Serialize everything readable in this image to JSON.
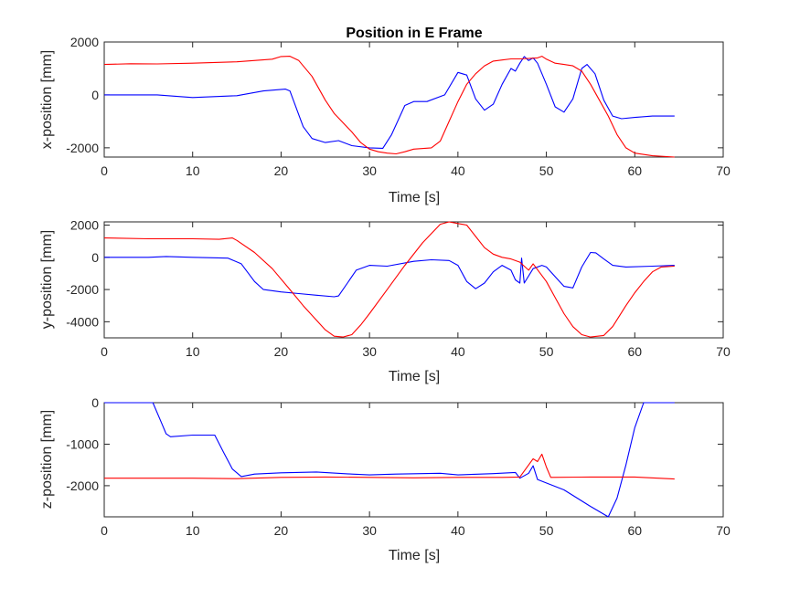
{
  "figure_title": "Position in E Frame",
  "colors": {
    "series_1": "#0000ff",
    "series_2": "#ff0000",
    "axes": "#262626",
    "background": "#ffffff"
  },
  "chart_data": [
    {
      "type": "line",
      "title": "Position in E Frame",
      "xlabel": "Time [s]",
      "ylabel": "x-position [mm]",
      "xlim": [
        0,
        70
      ],
      "ylim": [
        -2350,
        2000
      ],
      "xticks": [
        0,
        10,
        20,
        30,
        40,
        50,
        60,
        70
      ],
      "yticks": [
        -2000,
        0,
        2000
      ],
      "ytick_labels": [
        "-2000",
        "0",
        "2000"
      ],
      "grid": false,
      "legend": "none",
      "series": [
        {
          "color": "#0000ff",
          "points": [
            [
              0,
              0
            ],
            [
              6,
              0
            ],
            [
              10,
              -100
            ],
            [
              15,
              -30
            ],
            [
              18,
              150
            ],
            [
              20.5,
              220
            ],
            [
              21,
              150
            ],
            [
              22.5,
              -1200
            ],
            [
              23.5,
              -1650
            ],
            [
              25,
              -1800
            ],
            [
              26.5,
              -1730
            ],
            [
              28,
              -1920
            ],
            [
              30,
              -2000
            ],
            [
              31.5,
              -2020
            ],
            [
              32.5,
              -1500
            ],
            [
              34,
              -400
            ],
            [
              35,
              -250
            ],
            [
              36.5,
              -250
            ],
            [
              38.5,
              0
            ],
            [
              40,
              850
            ],
            [
              41,
              750
            ],
            [
              42,
              -150
            ],
            [
              43,
              -580
            ],
            [
              44,
              -350
            ],
            [
              45,
              400
            ],
            [
              46,
              1000
            ],
            [
              46.5,
              900
            ],
            [
              47,
              1200
            ],
            [
              47.5,
              1450
            ],
            [
              48,
              1300
            ],
            [
              48.5,
              1400
            ],
            [
              49,
              1200
            ],
            [
              50,
              400
            ],
            [
              51,
              -450
            ],
            [
              52,
              -650
            ],
            [
              53,
              -150
            ],
            [
              54,
              1000
            ],
            [
              54.6,
              1150
            ],
            [
              55.5,
              800
            ],
            [
              56.5,
              -200
            ],
            [
              57.5,
              -800
            ],
            [
              58.5,
              -900
            ],
            [
              60,
              -850
            ],
            [
              62,
              -800
            ],
            [
              64.5,
              -800
            ]
          ]
        },
        {
          "color": "#ff0000",
          "points": [
            [
              0,
              1150
            ],
            [
              3,
              1180
            ],
            [
              6,
              1170
            ],
            [
              10,
              1200
            ],
            [
              15,
              1250
            ],
            [
              19,
              1350
            ],
            [
              20,
              1450
            ],
            [
              21,
              1460
            ],
            [
              22,
              1300
            ],
            [
              23.5,
              700
            ],
            [
              25,
              -200
            ],
            [
              26,
              -700
            ],
            [
              28,
              -1400
            ],
            [
              29,
              -1800
            ],
            [
              30,
              -2050
            ],
            [
              31,
              -2150
            ],
            [
              32,
              -2200
            ],
            [
              33,
              -2230
            ],
            [
              34,
              -2150
            ],
            [
              35,
              -2050
            ],
            [
              37,
              -2000
            ],
            [
              38,
              -1750
            ],
            [
              39,
              -1000
            ],
            [
              40,
              -250
            ],
            [
              41,
              400
            ],
            [
              42,
              800
            ],
            [
              43,
              1100
            ],
            [
              44,
              1280
            ],
            [
              45,
              1320
            ],
            [
              46,
              1360
            ],
            [
              47,
              1360
            ],
            [
              48,
              1380
            ],
            [
              49,
              1400
            ],
            [
              49.5,
              1460
            ],
            [
              50,
              1350
            ],
            [
              51,
              1200
            ],
            [
              52,
              1150
            ],
            [
              53,
              1100
            ],
            [
              54,
              900
            ],
            [
              55,
              400
            ],
            [
              56,
              -200
            ],
            [
              57,
              -800
            ],
            [
              58,
              -1500
            ],
            [
              59,
              -2000
            ],
            [
              60,
              -2200
            ],
            [
              62,
              -2300
            ],
            [
              64.5,
              -2350
            ]
          ]
        }
      ]
    },
    {
      "type": "line",
      "xlabel": "Time [s]",
      "ylabel": "y-position [mm]",
      "xlim": [
        0,
        70
      ],
      "ylim": [
        -5000,
        2200
      ],
      "xticks": [
        0,
        10,
        20,
        30,
        40,
        50,
        60,
        70
      ],
      "yticks": [
        -4000,
        -2000,
        0,
        2000
      ],
      "ytick_labels": [
        "-4000",
        "-2000",
        "0",
        "2000"
      ],
      "grid": false,
      "legend": "none",
      "series": [
        {
          "color": "#0000ff",
          "points": [
            [
              0,
              0
            ],
            [
              5,
              0
            ],
            [
              7,
              50
            ],
            [
              10,
              0
            ],
            [
              14,
              -50
            ],
            [
              15.5,
              -400
            ],
            [
              17,
              -1500
            ],
            [
              18,
              -2000
            ],
            [
              20,
              -2150
            ],
            [
              22,
              -2250
            ],
            [
              24,
              -2350
            ],
            [
              26,
              -2450
            ],
            [
              26.5,
              -2400
            ],
            [
              27.5,
              -1600
            ],
            [
              28.5,
              -800
            ],
            [
              30,
              -500
            ],
            [
              32,
              -550
            ],
            [
              35,
              -250
            ],
            [
              37,
              -150
            ],
            [
              39,
              -200
            ],
            [
              40,
              -500
            ],
            [
              41,
              -1500
            ],
            [
              42,
              -1950
            ],
            [
              43,
              -1600
            ],
            [
              44,
              -900
            ],
            [
              45,
              -500
            ],
            [
              46,
              -800
            ],
            [
              46.5,
              -1400
            ],
            [
              47,
              -1600
            ],
            [
              47.2,
              -50
            ],
            [
              47.5,
              -1600
            ],
            [
              48.5,
              -700
            ],
            [
              49.5,
              -500
            ],
            [
              50,
              -600
            ],
            [
              51,
              -1200
            ],
            [
              52,
              -1800
            ],
            [
              53,
              -1900
            ],
            [
              54,
              -600
            ],
            [
              55,
              300
            ],
            [
              55.6,
              280
            ],
            [
              56.5,
              -100
            ],
            [
              57.5,
              -500
            ],
            [
              59,
              -600
            ],
            [
              62,
              -550
            ],
            [
              64.5,
              -500
            ]
          ]
        },
        {
          "color": "#ff0000",
          "points": [
            [
              0,
              1200
            ],
            [
              5,
              1150
            ],
            [
              10,
              1150
            ],
            [
              13,
              1120
            ],
            [
              14.5,
              1200
            ],
            [
              15,
              1050
            ],
            [
              17,
              300
            ],
            [
              19,
              -700
            ],
            [
              21,
              -2000
            ],
            [
              22.5,
              -3000
            ],
            [
              24,
              -3900
            ],
            [
              25,
              -4500
            ],
            [
              26,
              -4900
            ],
            [
              27,
              -4950
            ],
            [
              28,
              -4800
            ],
            [
              29,
              -4200
            ],
            [
              30,
              -3500
            ],
            [
              32,
              -2000
            ],
            [
              34,
              -500
            ],
            [
              36,
              900
            ],
            [
              38,
              2050
            ],
            [
              39,
              2200
            ],
            [
              40,
              2100
            ],
            [
              41,
              2000
            ],
            [
              42,
              1300
            ],
            [
              43,
              600
            ],
            [
              44,
              200
            ],
            [
              45,
              0
            ],
            [
              46,
              -100
            ],
            [
              47,
              -300
            ],
            [
              48,
              -800
            ],
            [
              48.5,
              -400
            ],
            [
              50,
              -1500
            ],
            [
              51,
              -2500
            ],
            [
              52,
              -3500
            ],
            [
              53,
              -4300
            ],
            [
              54,
              -4800
            ],
            [
              55,
              -4950
            ],
            [
              56.5,
              -4850
            ],
            [
              57.5,
              -4300
            ],
            [
              59,
              -3000
            ],
            [
              60,
              -2200
            ],
            [
              61,
              -1500
            ],
            [
              62,
              -900
            ],
            [
              63,
              -600
            ],
            [
              64.5,
              -550
            ]
          ]
        }
      ]
    },
    {
      "type": "line",
      "xlabel": "Time [s]",
      "ylabel": "z-position [mm]",
      "xlim": [
        0,
        70
      ],
      "ylim": [
        -2750,
        0
      ],
      "xticks": [
        0,
        10,
        20,
        30,
        40,
        50,
        60,
        70
      ],
      "yticks": [
        -2000,
        -1000,
        0
      ],
      "ytick_labels": [
        "-2000",
        "-1000",
        "0"
      ],
      "grid": false,
      "legend": "none",
      "series": [
        {
          "color": "#0000ff",
          "points": [
            [
              0,
              0
            ],
            [
              5.5,
              0
            ],
            [
              6.5,
              -500
            ],
            [
              7,
              -750
            ],
            [
              7.5,
              -820
            ],
            [
              10,
              -780
            ],
            [
              12.5,
              -780
            ],
            [
              13.5,
              -1200
            ],
            [
              14.5,
              -1600
            ],
            [
              15.5,
              -1780
            ],
            [
              17,
              -1720
            ],
            [
              20,
              -1690
            ],
            [
              24,
              -1670
            ],
            [
              28,
              -1720
            ],
            [
              30,
              -1740
            ],
            [
              33,
              -1720
            ],
            [
              38,
              -1700
            ],
            [
              40,
              -1740
            ],
            [
              44,
              -1710
            ],
            [
              46.5,
              -1680
            ],
            [
              47,
              -1820
            ],
            [
              48,
              -1700
            ],
            [
              48.5,
              -1520
            ],
            [
              49,
              -1850
            ],
            [
              52,
              -2100
            ],
            [
              55,
              -2500
            ],
            [
              57,
              -2750
            ],
            [
              58,
              -2300
            ],
            [
              59,
              -1500
            ],
            [
              60,
              -600
            ],
            [
              61,
              0
            ],
            [
              64.5,
              0
            ]
          ]
        },
        {
          "color": "#ff0000",
          "points": [
            [
              0,
              -1820
            ],
            [
              10,
              -1820
            ],
            [
              15,
              -1830
            ],
            [
              20,
              -1800
            ],
            [
              25,
              -1790
            ],
            [
              30,
              -1800
            ],
            [
              35,
              -1810
            ],
            [
              40,
              -1800
            ],
            [
              45,
              -1800
            ],
            [
              47,
              -1790
            ],
            [
              48,
              -1500
            ],
            [
              48.5,
              -1350
            ],
            [
              49,
              -1420
            ],
            [
              49.5,
              -1240
            ],
            [
              50,
              -1550
            ],
            [
              50.5,
              -1800
            ],
            [
              55,
              -1790
            ],
            [
              60,
              -1790
            ],
            [
              64.5,
              -1840
            ]
          ]
        }
      ]
    }
  ]
}
